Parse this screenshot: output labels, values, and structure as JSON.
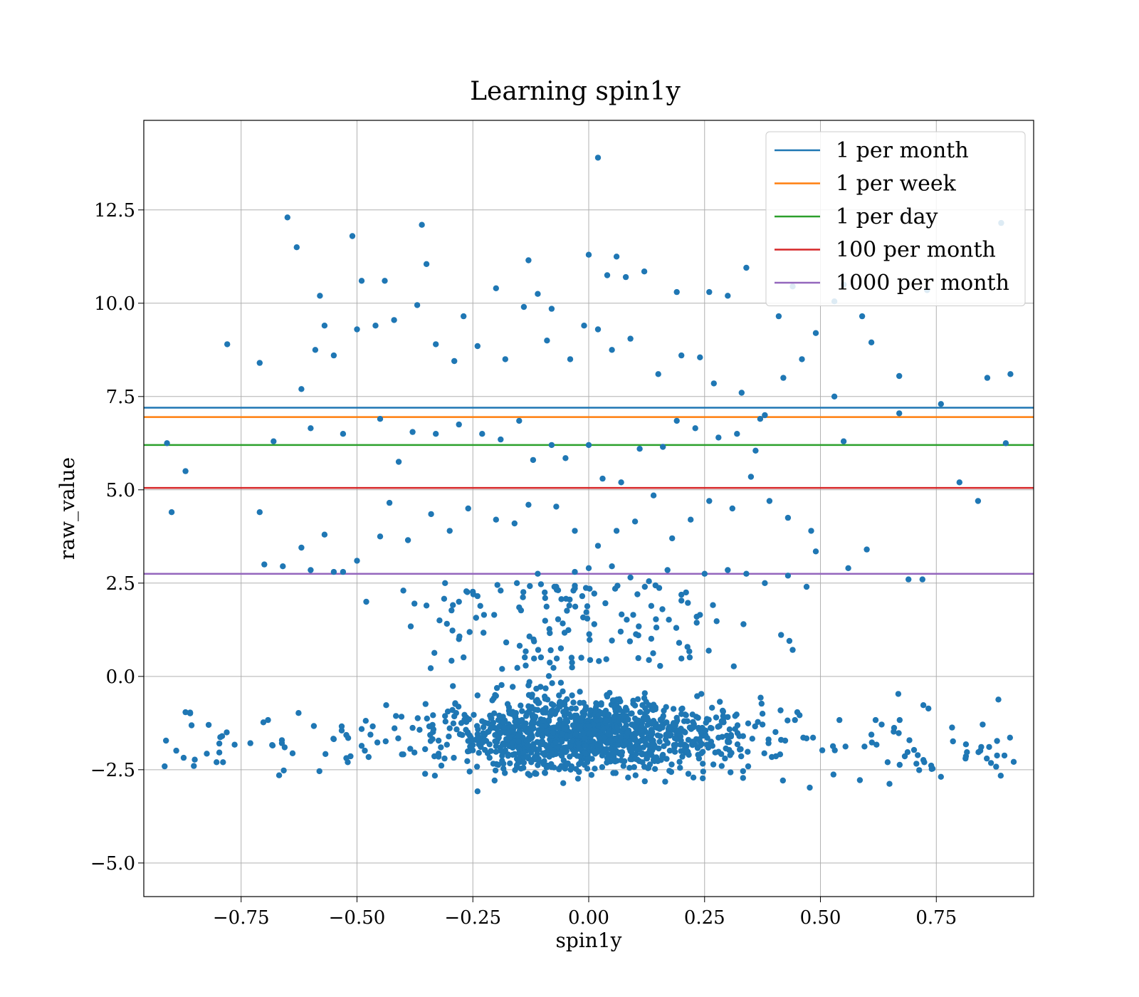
{
  "chart_data": {
    "type": "scatter",
    "title": "Learning spin1y",
    "xlabel": "spin1y",
    "ylabel": "raw_value",
    "xlim": [
      -0.96,
      0.96
    ],
    "ylim": [
      -5.9,
      14.9
    ],
    "xticks": [
      -0.75,
      -0.5,
      -0.25,
      0.0,
      0.25,
      0.5,
      0.75
    ],
    "xtick_labels": [
      "−0.75",
      "−0.50",
      "−0.25",
      "0.00",
      "0.25",
      "0.50",
      "0.75"
    ],
    "yticks": [
      -5.0,
      -2.5,
      0.0,
      2.5,
      5.0,
      7.5,
      10.0,
      12.5
    ],
    "ytick_labels": [
      "−5.0",
      "−2.5",
      "0.0",
      "2.5",
      "5.0",
      "7.5",
      "10.0",
      "12.5"
    ],
    "grid": true,
    "legend_position": "top-right",
    "point_color": "#1f77b4",
    "hlines": [
      {
        "name": "1 per month",
        "y": 7.2,
        "color": "#1f77b4"
      },
      {
        "name": "1 per week",
        "y": 6.95,
        "color": "#ff7f0e"
      },
      {
        "name": "1 per day",
        "y": 6.2,
        "color": "#2ca02c"
      },
      {
        "name": "100 per month",
        "y": 5.05,
        "color": "#d62728"
      },
      {
        "name": "1000 per month",
        "y": 2.75,
        "color": "#9467bd"
      }
    ],
    "points": {
      "x": [
        0.02,
        -0.65,
        -0.36,
        -0.51,
        -0.63,
        -0.13,
        0.06,
        0.0,
        -0.35,
        -0.57,
        -0.49,
        -0.44,
        -0.58,
        -0.37,
        -0.2,
        -0.11,
        -0.08,
        0.04,
        0.08,
        0.12,
        0.19,
        0.26,
        0.3,
        0.34,
        0.41,
        0.44,
        0.49,
        0.53,
        0.59,
        0.61,
        0.73,
        0.89,
        -0.78,
        -0.71,
        -0.62,
        -0.55,
        -0.59,
        -0.5,
        -0.46,
        -0.42,
        -0.33,
        -0.29,
        -0.27,
        -0.24,
        -0.18,
        -0.14,
        -0.09,
        -0.04,
        -0.01,
        0.02,
        0.05,
        0.09,
        0.15,
        0.2,
        0.24,
        0.27,
        0.33,
        0.38,
        0.42,
        0.46,
        0.53,
        0.55,
        0.67,
        0.76,
        0.86,
        0.91,
        -0.91,
        -0.68,
        -0.6,
        -0.53,
        -0.45,
        -0.41,
        -0.38,
        -0.33,
        -0.28,
        -0.23,
        -0.19,
        -0.15,
        -0.12,
        -0.08,
        -0.05,
        0.0,
        0.03,
        0.07,
        0.11,
        0.16,
        0.19,
        0.23,
        0.28,
        0.32,
        0.36,
        0.37,
        0.55,
        0.67,
        0.9,
        -0.9,
        -0.87,
        -0.71,
        -0.62,
        -0.57,
        -0.53,
        -0.5,
        -0.43,
        -0.39,
        -0.34,
        -0.3,
        -0.26,
        -0.2,
        -0.16,
        -0.13,
        -0.07,
        -0.03,
        0.02,
        0.06,
        0.1,
        0.14,
        0.18,
        0.22,
        0.26,
        0.31,
        0.35,
        0.39,
        0.43,
        0.48,
        0.49,
        0.6,
        0.8,
        0.84,
        -0.7,
        -0.66,
        -0.6,
        -0.55,
        -0.48,
        -0.45,
        -0.4,
        -0.35,
        -0.31,
        -0.28,
        -0.24,
        -0.19,
        -0.15,
        -0.11,
        -0.07,
        -0.03,
        0.0,
        0.05,
        0.09,
        0.13,
        0.17,
        0.21,
        0.25,
        0.3,
        0.34,
        0.38,
        0.43,
        0.47,
        0.56,
        0.69,
        0.72
      ],
      "y": [
        13.9,
        12.3,
        12.1,
        11.8,
        11.5,
        11.15,
        11.25,
        11.3,
        11.05,
        9.4,
        10.6,
        10.6,
        10.2,
        9.95,
        10.4,
        10.25,
        9.85,
        10.75,
        10.7,
        10.85,
        10.3,
        10.3,
        10.2,
        10.95,
        9.65,
        10.45,
        9.2,
        10.05,
        9.65,
        8.95,
        10.35,
        12.15,
        8.9,
        8.4,
        7.7,
        8.6,
        8.75,
        9.3,
        9.4,
        9.55,
        8.9,
        8.45,
        9.65,
        8.85,
        8.5,
        9.9,
        9.0,
        8.5,
        9.4,
        9.3,
        8.75,
        9.05,
        8.1,
        8.6,
        8.55,
        7.85,
        7.6,
        7.0,
        8.0,
        8.5,
        7.5,
        10.5,
        8.05,
        7.3,
        8.0,
        8.1,
        6.25,
        6.3,
        6.65,
        6.5,
        6.9,
        5.75,
        6.55,
        6.5,
        6.75,
        6.5,
        6.35,
        6.85,
        5.8,
        6.2,
        5.85,
        6.2,
        5.3,
        5.2,
        6.1,
        6.15,
        6.85,
        6.65,
        6.4,
        6.5,
        6.05,
        6.9,
        6.3,
        7.05,
        6.25,
        4.4,
        5.5,
        4.4,
        3.45,
        3.8,
        2.8,
        3.1,
        4.65,
        3.65,
        4.35,
        3.9,
        4.5,
        4.2,
        4.1,
        4.6,
        4.55,
        3.9,
        3.5,
        3.9,
        4.15,
        4.85,
        3.7,
        4.2,
        4.7,
        4.5,
        5.35,
        4.7,
        4.25,
        3.9,
        3.35,
        3.4,
        5.2,
        4.7,
        3.0,
        2.95,
        2.85,
        2.8,
        2.0,
        3.75,
        2.3,
        1.9,
        2.5,
        2.0,
        2.15,
        2.3,
        1.85,
        2.75,
        2.4,
        2.8,
        2.9,
        2.95,
        2.65,
        2.55,
        2.85,
        2.25,
        2.75,
        2.85,
        2.75,
        2.5,
        2.7,
        2.4,
        2.9,
        2.6,
        2.6
      ]
    },
    "cluster_seed": 7
  }
}
